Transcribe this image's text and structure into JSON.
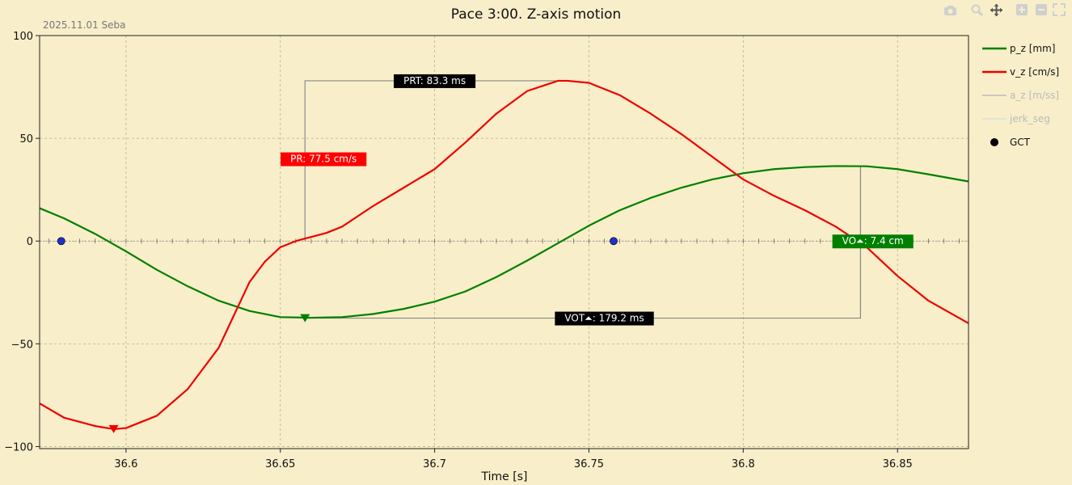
{
  "chart_data": {
    "type": "line",
    "title": "Pace 3:00. Z-axis motion",
    "subtitle": "2025.11.01 Seba",
    "xlabel": "Time [s]",
    "ylabel": "",
    "xlim": [
      36.572,
      36.873
    ],
    "ylim": [
      -101,
      100
    ],
    "x_ticks": [
      36.6,
      36.65,
      36.7,
      36.75,
      36.8,
      36.85
    ],
    "x_tick_labels": [
      "36.6",
      "36.65",
      "36.7",
      "36.75",
      "36.8",
      "36.85"
    ],
    "y_ticks": [
      -100,
      -50,
      0,
      50,
      100
    ],
    "y_tick_labels": [
      "−100",
      "−50",
      "0",
      "50",
      "100"
    ],
    "grid": true,
    "legend_position": "right",
    "background": "#f8eec9",
    "series": [
      {
        "name": "p_z  [mm]",
        "color": "#008000",
        "visible": true,
        "x": [
          36.572,
          36.58,
          36.59,
          36.6,
          36.61,
          36.62,
          36.63,
          36.64,
          36.65,
          36.66,
          36.67,
          36.68,
          36.69,
          36.7,
          36.71,
          36.72,
          36.73,
          36.74,
          36.75,
          36.76,
          36.77,
          36.78,
          36.79,
          36.8,
          36.81,
          36.82,
          36.83,
          36.84,
          36.85,
          36.86,
          36.873
        ],
        "values": [
          16,
          11,
          3.5,
          -5,
          -14,
          -22,
          -29,
          -34,
          -37,
          -37.3,
          -37,
          -35.5,
          -33,
          -29.5,
          -24.5,
          -17.5,
          -9.5,
          -1,
          7.5,
          15,
          21,
          26,
          30,
          33,
          35,
          36,
          36.5,
          36.4,
          35,
          32.5,
          29
        ]
      },
      {
        "name": "v_z  [cm/s]",
        "color": "#ee0000",
        "visible": true,
        "x": [
          36.572,
          36.58,
          36.59,
          36.596,
          36.6,
          36.61,
          36.62,
          36.63,
          36.635,
          36.64,
          36.645,
          36.65,
          36.655,
          36.66,
          36.665,
          36.67,
          36.68,
          36.69,
          36.7,
          36.71,
          36.72,
          36.73,
          36.74,
          36.743,
          36.75,
          36.76,
          36.77,
          36.78,
          36.79,
          36.8,
          36.81,
          36.82,
          36.83,
          36.84,
          36.85,
          36.86,
          36.873
        ],
        "values": [
          -79,
          -86,
          -90,
          -91.5,
          -91,
          -85,
          -72,
          -52,
          -36,
          -20,
          -10,
          -3,
          0,
          2,
          4,
          7,
          17,
          26,
          35,
          48,
          62,
          73,
          78,
          78,
          77,
          71,
          62,
          52,
          41,
          30,
          22,
          15,
          7,
          -3,
          -17,
          -29,
          -40
        ]
      },
      {
        "name": "a_z  [m/ss]",
        "color": "#bbbbbb",
        "visible": false,
        "x": [],
        "values": []
      },
      {
        "name": "jerk_seg",
        "color": "#dddddd",
        "visible": false,
        "x": [],
        "values": []
      },
      {
        "name": "GCT",
        "color": "#000000",
        "visible": true,
        "marker": "circle",
        "points": [
          {
            "x": 36.579,
            "y": 0,
            "color": "#1f2fd0"
          },
          {
            "x": 36.758,
            "y": 0,
            "color": "#1f2fd0"
          }
        ]
      }
    ],
    "markers": [
      {
        "name": "p_z minimum",
        "x": 36.658,
        "y": -37.5,
        "color": "#008000",
        "shape": "triangle-down"
      },
      {
        "name": "v_z minimum",
        "x": 36.596,
        "y": -91.5,
        "color": "#ee0000",
        "shape": "triangle-down"
      }
    ],
    "zero_axis_ticks": {
      "start": 36.575,
      "end": 36.871,
      "step": 0.005
    },
    "guide_lines": [
      {
        "points": [
          [
            36.658,
            0
          ],
          [
            36.658,
            78
          ],
          [
            36.743,
            78
          ]
        ],
        "color": "#888888"
      },
      {
        "points": [
          [
            36.658,
            -37.5
          ],
          [
            36.838,
            -37.5
          ],
          [
            36.838,
            36.5
          ]
        ],
        "color": "#888888"
      }
    ],
    "annotations": [
      {
        "text": "PRT: 83.3 ms",
        "x": 36.7,
        "y": 78,
        "bg": "#000000",
        "fg": "#ffffff"
      },
      {
        "text": "PR: 77.5 cm/s",
        "x": 36.664,
        "y": 40,
        "bg": "#ff0000",
        "fg": "#ffffff"
      },
      {
        "text": "VO⏶: 7.4 cm",
        "x": 36.842,
        "y": 0,
        "bg": "#008000",
        "fg": "#ffffff"
      },
      {
        "text": "VOT⏶: 179.2 ms",
        "x": 36.755,
        "y": -37.5,
        "bg": "#000000",
        "fg": "#ffffff"
      }
    ]
  },
  "toolbar": {
    "icons": [
      "camera-icon",
      "zoom-icon",
      "pan-icon",
      "zoom-in-icon",
      "zoom-out-icon",
      "autoscale-icon"
    ]
  }
}
